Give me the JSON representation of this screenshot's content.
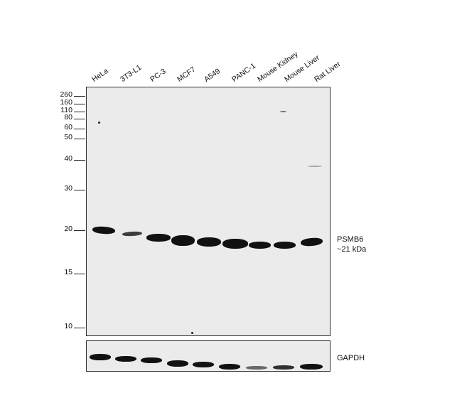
{
  "lanes": [
    "HeLa",
    "3T3-L1",
    "PC-3",
    "MCF7",
    "A549",
    "PANC-1",
    "Mouse Kidney",
    "Mouse Liver",
    "Rat Liver"
  ],
  "mw_markers": [
    "260",
    "160",
    "110",
    "80",
    "60",
    "50",
    "40",
    "30",
    "20",
    "15",
    "10"
  ],
  "target": {
    "name": "PSMB6",
    "size": "~21 kDa"
  },
  "loading_control": {
    "name": "GAPDH"
  },
  "band_intensity": [
    0.85,
    0.45,
    0.85,
    1.0,
    0.95,
    0.95,
    0.8,
    0.8,
    0.8
  ],
  "gapdh_intensity": [
    0.95,
    0.85,
    0.85,
    0.85,
    0.85,
    0.75,
    0.5,
    0.7,
    0.8
  ]
}
